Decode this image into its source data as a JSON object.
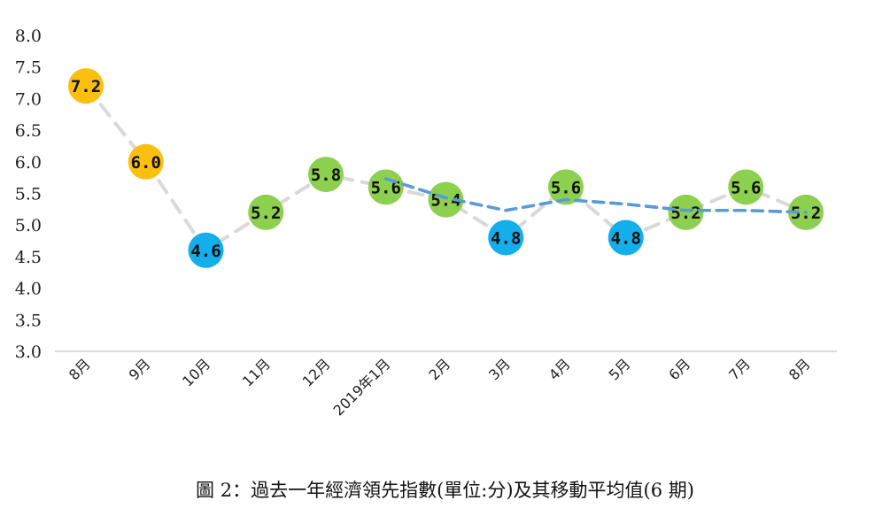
{
  "caption": "圖 2：過去一年經濟領先指數(單位:分)及其移動平均值(6 期)",
  "chart_data": {
    "type": "line",
    "categories": [
      "8月",
      "9月",
      "10月",
      "11月",
      "12月",
      "2019年1月",
      "2月",
      "3月",
      "4月",
      "5月",
      "6月",
      "7月",
      "8月"
    ],
    "yticks": [
      "8.0",
      "7.5",
      "7.0",
      "6.5",
      "6.0",
      "5.5",
      "5.0",
      "4.5",
      "4.0",
      "3.5",
      "3.0"
    ],
    "ylim": [
      3.0,
      8.0
    ],
    "title": "",
    "xlabel": "",
    "ylabel": "",
    "legend": "none",
    "grid": false,
    "series": [
      {
        "values": [
          7.2,
          6.0,
          4.6,
          5.2,
          5.8,
          5.6,
          5.4,
          4.8,
          5.6,
          4.8,
          5.2,
          5.6,
          5.2
        ],
        "labels": [
          "7.2",
          "6.0",
          "4.6",
          "5.2",
          "5.8",
          "5.6",
          "5.4",
          "4.8",
          "5.6",
          "4.8",
          "5.2",
          "5.6",
          "5.2"
        ],
        "line_color": "#d9d9d9",
        "style": "dashed",
        "marker_colors": [
          "#fbbf0f",
          "#fbbf0f",
          "#14aeeb",
          "#8dcf4f",
          "#8dcf4f",
          "#8dcf4f",
          "#8dcf4f",
          "#14aeeb",
          "#8dcf4f",
          "#14aeeb",
          "#8dcf4f",
          "#8dcf4f",
          "#8dcf4f"
        ]
      },
      {
        "values": [
          null,
          null,
          null,
          null,
          null,
          5.73,
          5.43,
          5.23,
          5.4,
          5.33,
          5.23,
          5.23,
          5.2
        ],
        "line_color": "#5b9bd5",
        "style": "dashed"
      }
    ]
  }
}
